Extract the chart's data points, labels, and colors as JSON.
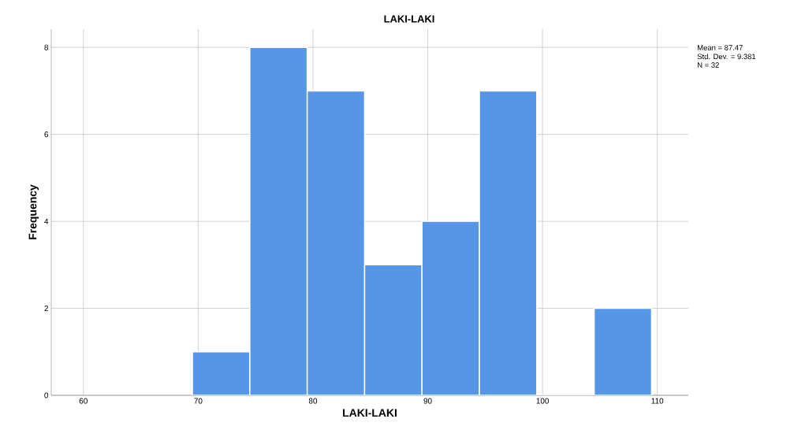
{
  "chart_data": {
    "type": "histogram",
    "title": "LAKI-LAKI",
    "xlabel": "LAKI-LAKI",
    "ylabel": "Frequency",
    "bins": [
      69.5,
      74.5,
      79.5,
      84.5,
      89.5,
      94.5,
      99.5,
      104.5,
      109.5
    ],
    "values": [
      1,
      8,
      7,
      3,
      4,
      7,
      0,
      2
    ],
    "color": "#5596e6",
    "xlim": [
      57.2,
      112.7
    ],
    "ylim": [
      0,
      8.42
    ],
    "xticks": [
      60,
      70,
      80,
      90,
      100,
      110
    ],
    "yticks": [
      0,
      2,
      4,
      6,
      8
    ],
    "grid": true,
    "annotations": [
      "Mean = 87.47",
      "Std. Dev. = 9.381",
      "N = 32"
    ]
  }
}
